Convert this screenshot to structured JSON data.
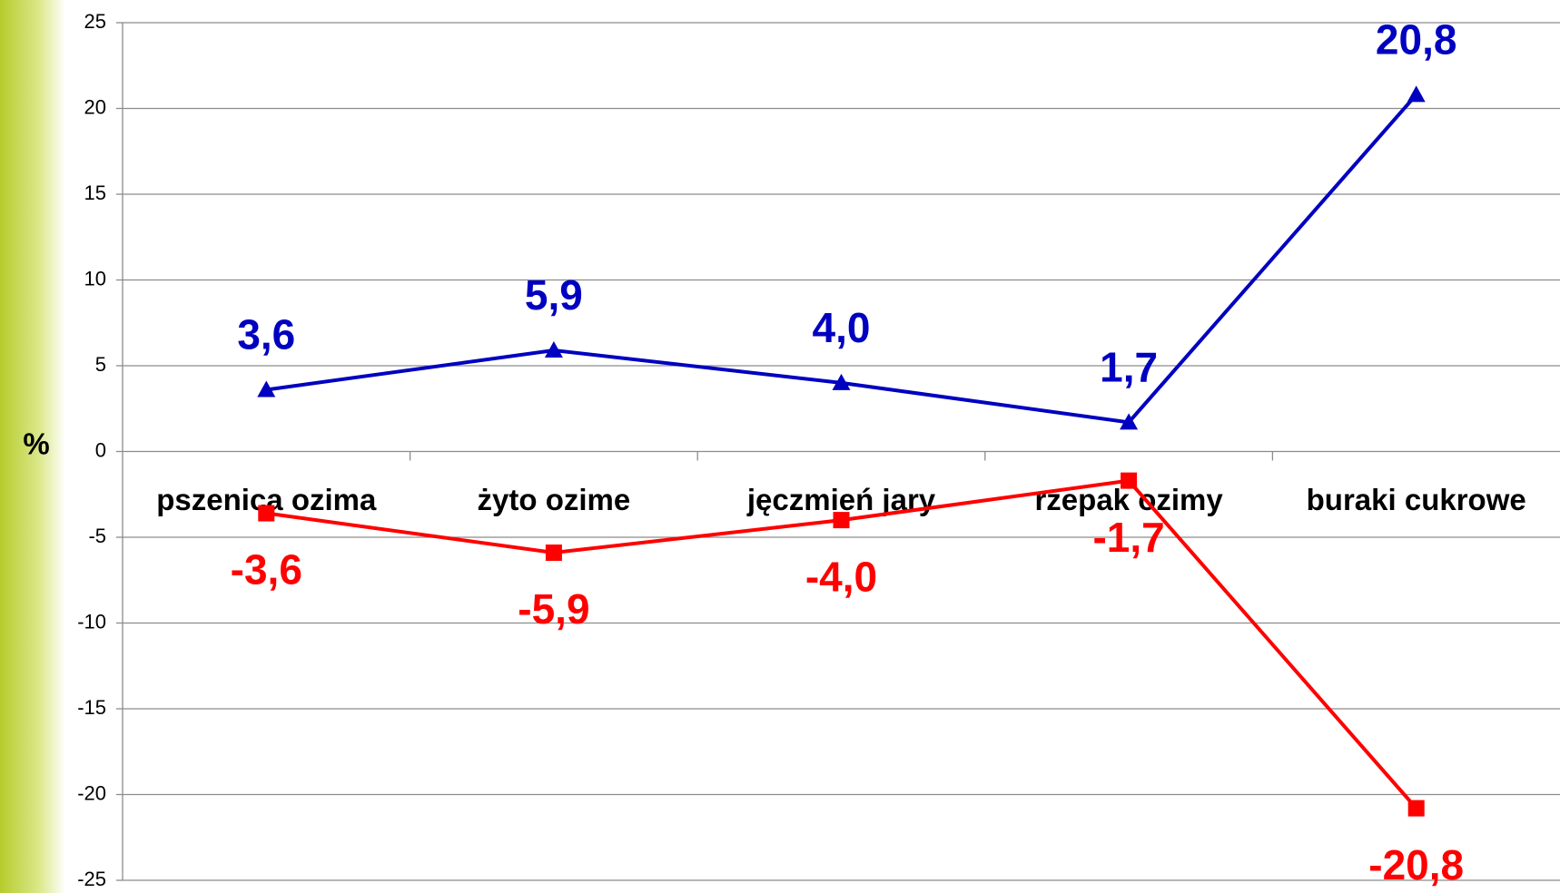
{
  "chart_data": {
    "type": "line",
    "ylabel": "%",
    "categories": [
      "pszenica ozima",
      "żyto ozime",
      "jęczmień jary",
      "rzepak ozimy",
      "buraki cukrowe"
    ],
    "series": [
      {
        "color": "#0000c0",
        "marker": "triangle",
        "values": [
          3.6,
          5.9,
          4.0,
          1.7,
          20.8
        ],
        "value_labels": [
          "3,6",
          "5,9",
          "4,0",
          "1,7",
          "20,8"
        ]
      },
      {
        "color": "#ff0000",
        "marker": "square",
        "values": [
          -3.6,
          -5.9,
          -4.0,
          -1.7,
          -20.8
        ],
        "value_labels": [
          "-3,6",
          "-5,9",
          "-4,0",
          "-1,7",
          "-20,8"
        ]
      }
    ],
    "ylim": [
      -25,
      25
    ],
    "yticks": [
      -25,
      -20,
      -15,
      -10,
      -5,
      0,
      5,
      10,
      15,
      20,
      25
    ],
    "grid": true
  }
}
